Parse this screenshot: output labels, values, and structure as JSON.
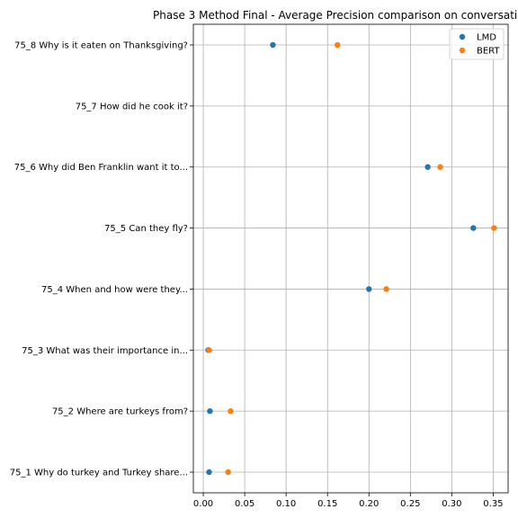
{
  "chart_data": {
    "type": "scatter",
    "title": "Phase 3 Method Final - Average Precision comparison on conversati",
    "xlabel": "",
    "ylabel": "",
    "xlim": [
      -0.012,
      0.368
    ],
    "xticks": [
      0.0,
      0.05,
      0.1,
      0.15,
      0.2,
      0.25,
      0.3,
      0.35
    ],
    "xtick_labels": [
      "0.00",
      "0.05",
      "0.10",
      "0.15",
      "0.20",
      "0.25",
      "0.30",
      "0.35"
    ],
    "grid": true,
    "legend_position": "top-right",
    "categories": [
      "75_1 Why do turkey and Turkey share...",
      "75_2 Where are turkeys from?",
      "75_3 What was their importance in...",
      "75_4 When and how were they...",
      "75_5 Can they fly?",
      "75_6 Why did Ben Franklin want it to...",
      "75_7 How did he cook it?",
      "75_8 Why is it eaten on Thanksgiving?"
    ],
    "series": [
      {
        "name": "LMD",
        "color": "#1f77b4",
        "values": [
          0.007,
          0.008,
          0.006,
          0.2,
          0.326,
          0.271,
          null,
          0.084
        ]
      },
      {
        "name": "BERT",
        "color": "#ff7f0e",
        "values": [
          0.03,
          0.033,
          0.007,
          0.221,
          0.351,
          0.286,
          null,
          0.162
        ]
      }
    ]
  }
}
